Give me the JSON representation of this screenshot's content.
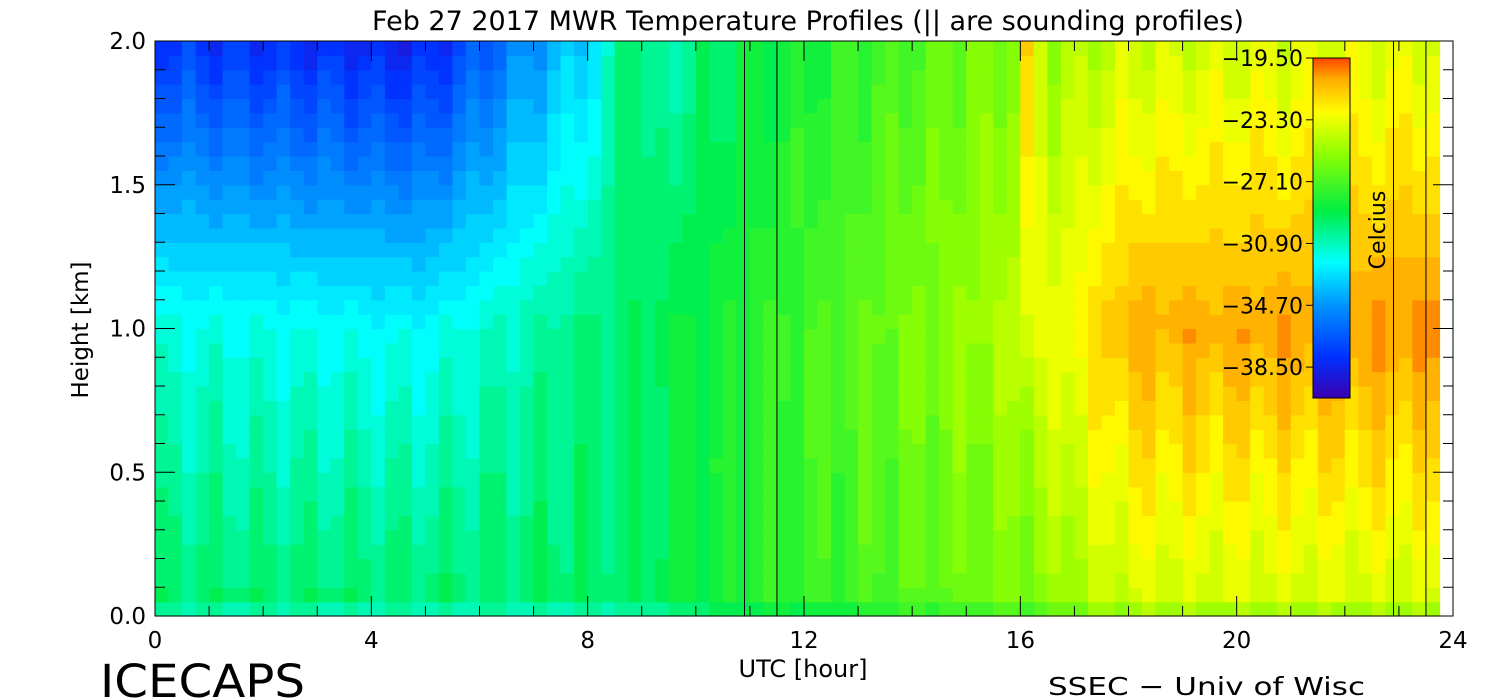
{
  "chart_data": {
    "type": "heatmap",
    "title": "Feb 27 2017 MWR Temperature Profiles (|| are sounding profiles)",
    "xlabel": "UTC [hour]",
    "ylabel": "Height [km]",
    "xlim": [
      0,
      24
    ],
    "ylim": [
      0.0,
      2.0
    ],
    "x_ticks": [
      0,
      4,
      8,
      12,
      16,
      20,
      24
    ],
    "x_tick_labels": [
      "0",
      "4",
      "8",
      "12",
      "16",
      "20",
      "24"
    ],
    "y_ticks": [
      0.0,
      0.5,
      1.0,
      1.5,
      2.0
    ],
    "y_tick_labels": [
      "0.0",
      "0.5",
      "1.0",
      "1.5",
      "2.0"
    ],
    "colorbar": {
      "label": "Celcius",
      "range": [
        -40.4,
        -19.5
      ],
      "tick_values": [
        -19.5,
        -23.3,
        -27.1,
        -30.9,
        -34.7,
        -38.5
      ],
      "tick_labels": [
        "−19.50",
        "−23.30",
        "−27.10",
        "−30.90",
        "−34.70",
        "−38.50"
      ]
    },
    "sounding_times": [
      10.9,
      11.5,
      22.9,
      23.5
    ],
    "data_end_hour": 23.75,
    "grid": false,
    "temperature_summary": [
      {
        "utc": 0,
        "t_0km": -29.5,
        "t_1km": -31.5,
        "t_2km": -37.5
      },
      {
        "utc": 5,
        "t_0km": -29.5,
        "t_1km": -32.0,
        "t_2km": -38.5
      },
      {
        "utc": 8.7,
        "t_0km": -29.5,
        "t_1km": -29.5,
        "t_2km": -31.5
      },
      {
        "utc": 11,
        "t_0km": -28.0,
        "t_1km": -28.0,
        "t_2km": -29.0
      },
      {
        "utc": 16,
        "t_0km": -26.0,
        "t_1km": -24.5,
        "t_2km": -25.5
      },
      {
        "utc": 18,
        "t_0km": -24.0,
        "t_1km": -21.0,
        "t_2km": -24.0
      },
      {
        "utc": 23.2,
        "t_0km": -24.0,
        "t_1km": -20.5,
        "t_2km": -23.5
      }
    ]
  },
  "footer": {
    "logo": "ICECAPS",
    "credit": "SSEC − Univ of Wisc"
  }
}
